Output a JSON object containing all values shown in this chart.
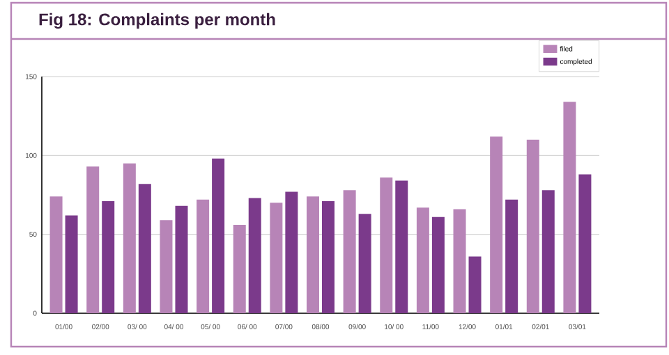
{
  "chart_data": {
    "type": "bar",
    "title": "Fig 18: Complaints per month",
    "categories": [
      "01/00",
      "02/00",
      "03/ 00",
      "04/ 00",
      "05/ 00",
      "06/ 00",
      "07/00",
      "08/00",
      "09/00",
      "10/ 00",
      "11/00",
      "12/00",
      "01/01",
      "02/01",
      "03/01"
    ],
    "series": [
      {
        "name": "filed",
        "color": "#b784b7",
        "values": [
          74,
          93,
          95,
          59,
          72,
          56,
          70,
          74,
          78,
          86,
          67,
          66,
          112,
          110,
          134
        ]
      },
      {
        "name": "completed",
        "color": "#7b3a8b",
        "values": [
          62,
          71,
          82,
          68,
          98,
          73,
          77,
          71,
          63,
          84,
          61,
          36,
          72,
          78,
          88
        ]
      }
    ],
    "ylim": [
      0,
      150
    ],
    "yticks": [
      0,
      50,
      100,
      150
    ],
    "grid": "y",
    "legend": "top right"
  }
}
